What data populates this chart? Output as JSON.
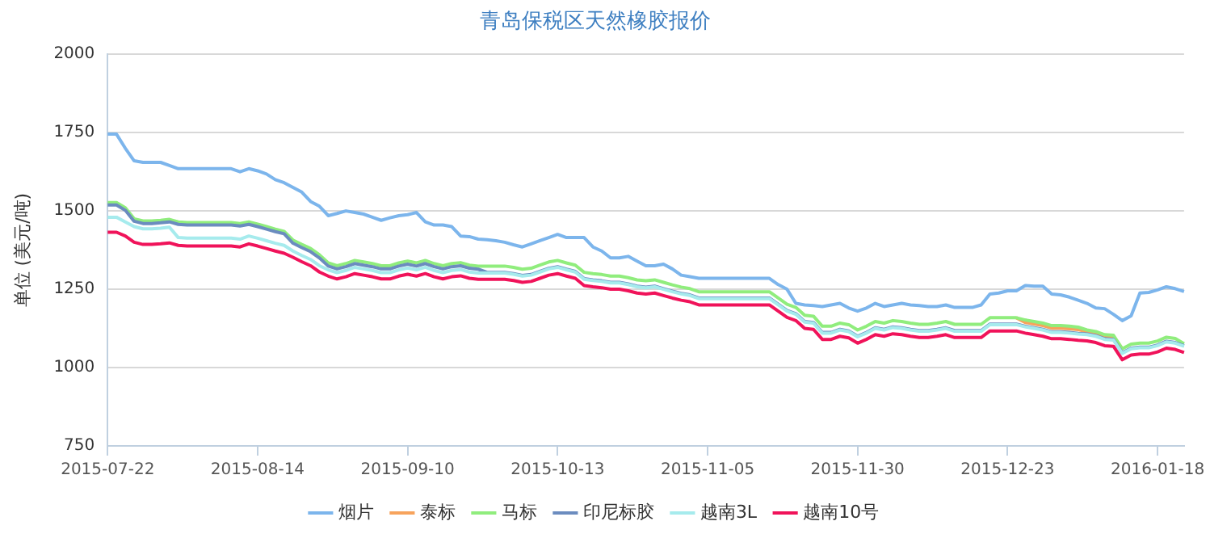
{
  "chart_data": {
    "type": "line",
    "title": "青岛保税区天然橡胶报价",
    "ylabel": "单位 (美元/吨)",
    "categories": [
      "2015-07-22",
      null,
      null,
      null,
      null,
      null,
      null,
      null,
      null,
      null,
      null,
      null,
      null,
      null,
      null,
      null,
      null,
      "2015-08-14",
      null,
      null,
      null,
      null,
      null,
      null,
      null,
      null,
      null,
      null,
      null,
      null,
      null,
      null,
      null,
      null,
      "2015-09-10",
      null,
      null,
      null,
      null,
      null,
      null,
      null,
      null,
      null,
      null,
      null,
      null,
      null,
      null,
      null,
      null,
      "2015-10-13",
      null,
      null,
      null,
      null,
      null,
      null,
      null,
      null,
      null,
      null,
      null,
      null,
      null,
      null,
      null,
      null,
      "2015-11-05",
      null,
      null,
      null,
      null,
      null,
      null,
      null,
      null,
      null,
      null,
      null,
      null,
      null,
      null,
      null,
      null,
      "2015-11-30",
      null,
      null,
      null,
      null,
      null,
      null,
      null,
      null,
      null,
      null,
      null,
      null,
      null,
      null,
      null,
      null,
      "2015-12-23",
      null,
      null,
      null,
      null,
      null,
      null,
      null,
      null,
      null,
      null,
      null,
      null,
      null,
      null,
      null,
      null,
      "2016-01-18",
      null,
      null,
      null
    ],
    "series": [
      {
        "name": "烟片",
        "color": "#7cb5ec",
        "values": [
          1745,
          1745,
          1700,
          1660,
          1655,
          1655,
          1655,
          1645,
          1635,
          1635,
          1635,
          1635,
          1635,
          1635,
          1635,
          1625,
          1635,
          1628,
          1618,
          1600,
          1590,
          1575,
          1560,
          1530,
          1515,
          1485,
          1492,
          1500,
          1495,
          1490,
          1480,
          1470,
          1478,
          1485,
          1488,
          1495,
          1465,
          1455,
          1455,
          1450,
          1420,
          1418,
          1410,
          1408,
          1405,
          1400,
          1392,
          1385,
          1395,
          1405,
          1415,
          1425,
          1415,
          1415,
          1415,
          1385,
          1372,
          1350,
          1350,
          1355,
          1340,
          1325,
          1325,
          1330,
          1315,
          1295,
          1290,
          1285,
          1285,
          1285,
          1285,
          1285,
          1285,
          1285,
          1285,
          1285,
          1265,
          1250,
          1205,
          1200,
          1198,
          1195,
          1200,
          1205,
          1190,
          1180,
          1190,
          1205,
          1195,
          1200,
          1205,
          1200,
          1198,
          1195,
          1195,
          1200,
          1192,
          1192,
          1192,
          1200,
          1235,
          1238,
          1245,
          1245,
          1262,
          1260,
          1260,
          1235,
          1232,
          1225,
          1215,
          1205,
          1190,
          1188,
          1170,
          1150,
          1165,
          1238,
          1240,
          1248,
          1258,
          1252,
          1243
        ]
      },
      {
        "name": "泰标",
        "color": "#f7a35c",
        "values": [
          null,
          null,
          null,
          null,
          null,
          null,
          null,
          null,
          null,
          null,
          null,
          null,
          null,
          null,
          null,
          null,
          null,
          null,
          null,
          null,
          null,
          null,
          null,
          null,
          null,
          null,
          null,
          null,
          null,
          null,
          null,
          null,
          null,
          null,
          null,
          null,
          null,
          null,
          null,
          null,
          null,
          null,
          null,
          null,
          null,
          null,
          null,
          null,
          null,
          null,
          null,
          null,
          null,
          null,
          null,
          null,
          null,
          null,
          null,
          null,
          null,
          null,
          null,
          null,
          null,
          null,
          null,
          null,
          null,
          null,
          null,
          null,
          null,
          null,
          null,
          null,
          null,
          null,
          null,
          null,
          null,
          null,
          null,
          null,
          null,
          null,
          null,
          null,
          null,
          null,
          null,
          null,
          null,
          null,
          null,
          null,
          null,
          null,
          null,
          null,
          null,
          null,
          null,
          1159,
          1144,
          1139,
          1134,
          1126,
          1126,
          1124,
          1121,
          1115,
          1110,
          1100,
          1098,
          1060,
          null,
          null,
          null,
          null,
          null,
          null,
          null
        ]
      },
      {
        "name": "马标",
        "color": "#90ed7d",
        "values": [
          1527,
          1527,
          1510,
          1475,
          1468,
          1468,
          1470,
          1473,
          1465,
          1463,
          1463,
          1463,
          1463,
          1463,
          1463,
          1460,
          1465,
          1458,
          1450,
          1442,
          1435,
          1407,
          1393,
          1380,
          1360,
          1334,
          1325,
          1332,
          1342,
          1337,
          1332,
          1325,
          1325,
          1334,
          1340,
          1334,
          1342,
          1332,
          1325,
          1332,
          1335,
          1327,
          1324,
          1324,
          1324,
          1324,
          1320,
          1314,
          1317,
          1327,
          1337,
          1342,
          1334,
          1327,
          1304,
          1300,
          1297,
          1292,
          1292,
          1287,
          1280,
          1277,
          1280,
          1272,
          1264,
          1257,
          1252,
          1242,
          1242,
          1242,
          1242,
          1242,
          1242,
          1242,
          1242,
          1242,
          1222,
          1202,
          1192,
          1167,
          1164,
          1132,
          1132,
          1142,
          1137,
          1120,
          1132,
          1147,
          1142,
          1150,
          1147,
          1142,
          1138,
          1138,
          1142,
          1147,
          1138,
          1138,
          1138,
          1138,
          1159,
          1159,
          1159,
          1159,
          1152,
          1147,
          1142,
          1134,
          1134,
          1132,
          1129,
          1120,
          1115,
          1105,
          1103,
          1060,
          1075,
          1078,
          1078,
          1085,
          1097,
          1093,
          1076
        ]
      },
      {
        "name": "印尼标胶",
        "color": "#6b8cbf",
        "values": [
          1519,
          1519,
          1502,
          1467,
          1460,
          1460,
          1462,
          1465,
          1457,
          1455,
          1455,
          1455,
          1455,
          1455,
          1455,
          1452,
          1457,
          1450,
          1442,
          1434,
          1427,
          1397,
          1383,
          1370,
          1350,
          1324,
          1315,
          1322,
          1332,
          1327,
          1322,
          1315,
          1315,
          1324,
          1330,
          1324,
          1332,
          1322,
          1315,
          1322,
          1325,
          1317,
          1314,
          1304,
          1304,
          1304,
          1300,
          1294,
          1297,
          1307,
          1317,
          1322,
          1314,
          1307,
          1284,
          1280,
          1277,
          1272,
          1272,
          1267,
          1260,
          1257,
          1260,
          1252,
          1244,
          1237,
          1232,
          1222,
          1222,
          1222,
          1222,
          1222,
          1222,
          1222,
          1222,
          1222,
          1202,
          1182,
          1172,
          1147,
          1144,
          1112,
          1112,
          1122,
          1117,
          1100,
          1112,
          1127,
          1122,
          1130,
          1127,
          1122,
          1118,
          1118,
          1122,
          1127,
          1118,
          1118,
          1118,
          1118,
          1139,
          1139,
          1139,
          1139,
          1132,
          1127,
          1122,
          1114,
          1114,
          1112,
          1109,
          1107,
          1102,
          1092,
          1090,
          1047,
          1062,
          1065,
          1065,
          1072,
          1084,
          1080,
          1070
        ]
      },
      {
        "name": "越南3L",
        "color": "#a6ebed",
        "values": [
          1480,
          1480,
          1465,
          1450,
          1443,
          1443,
          1445,
          1448,
          1415,
          1413,
          1413,
          1413,
          1413,
          1413,
          1413,
          1410,
          1420,
          1413,
          1405,
          1397,
          1390,
          1372,
          1358,
          1345,
          1325,
          1312,
          1303,
          1310,
          1320,
          1315,
          1310,
          1303,
          1303,
          1312,
          1318,
          1312,
          1320,
          1310,
          1303,
          1310,
          1313,
          1305,
          1302,
          1302,
          1302,
          1302,
          1298,
          1292,
          1295,
          1305,
          1315,
          1320,
          1312,
          1305,
          1282,
          1278,
          1275,
          1270,
          1270,
          1265,
          1258,
          1255,
          1258,
          1250,
          1242,
          1235,
          1230,
          1220,
          1220,
          1220,
          1220,
          1220,
          1220,
          1220,
          1220,
          1220,
          1200,
          1180,
          1170,
          1145,
          1142,
          1110,
          1110,
          1120,
          1115,
          1098,
          1110,
          1125,
          1120,
          1128,
          1125,
          1120,
          1116,
          1116,
          1120,
          1125,
          1116,
          1116,
          1116,
          1116,
          1137,
          1137,
          1137,
          1137,
          1130,
          1125,
          1120,
          1112,
          1112,
          1110,
          1107,
          1105,
          1100,
          1090,
          1088,
          1045,
          1060,
          1063,
          1063,
          1070,
          1082,
          1078,
          1068
        ]
      },
      {
        "name": "越南10号",
        "color": "#f0135a",
        "values": [
          1432,
          1432,
          1420,
          1400,
          1393,
          1393,
          1395,
          1398,
          1390,
          1388,
          1388,
          1388,
          1388,
          1388,
          1388,
          1385,
          1395,
          1388,
          1380,
          1372,
          1365,
          1352,
          1338,
          1325,
          1305,
          1292,
          1283,
          1290,
          1300,
          1295,
          1290,
          1283,
          1283,
          1292,
          1298,
          1292,
          1300,
          1290,
          1283,
          1290,
          1293,
          1285,
          1282,
          1282,
          1282,
          1282,
          1278,
          1272,
          1275,
          1285,
          1295,
          1300,
          1292,
          1285,
          1262,
          1258,
          1255,
          1250,
          1250,
          1245,
          1238,
          1235,
          1238,
          1230,
          1222,
          1215,
          1210,
          1200,
          1200,
          1200,
          1200,
          1200,
          1200,
          1200,
          1200,
          1200,
          1180,
          1160,
          1150,
          1125,
          1122,
          1090,
          1090,
          1100,
          1095,
          1078,
          1090,
          1105,
          1100,
          1108,
          1105,
          1100,
          1096,
          1096,
          1100,
          1105,
          1096,
          1096,
          1096,
          1096,
          1117,
          1117,
          1117,
          1117,
          1110,
          1105,
          1100,
          1092,
          1092,
          1090,
          1087,
          1085,
          1080,
          1070,
          1068,
          1025,
          1040,
          1043,
          1043,
          1050,
          1062,
          1058,
          1048
        ]
      }
    ],
    "ylim": [
      750,
      2000
    ],
    "yticks": [
      750,
      1000,
      1250,
      1500,
      1750,
      2000
    ],
    "grid": "y",
    "legend": "bottom"
  }
}
